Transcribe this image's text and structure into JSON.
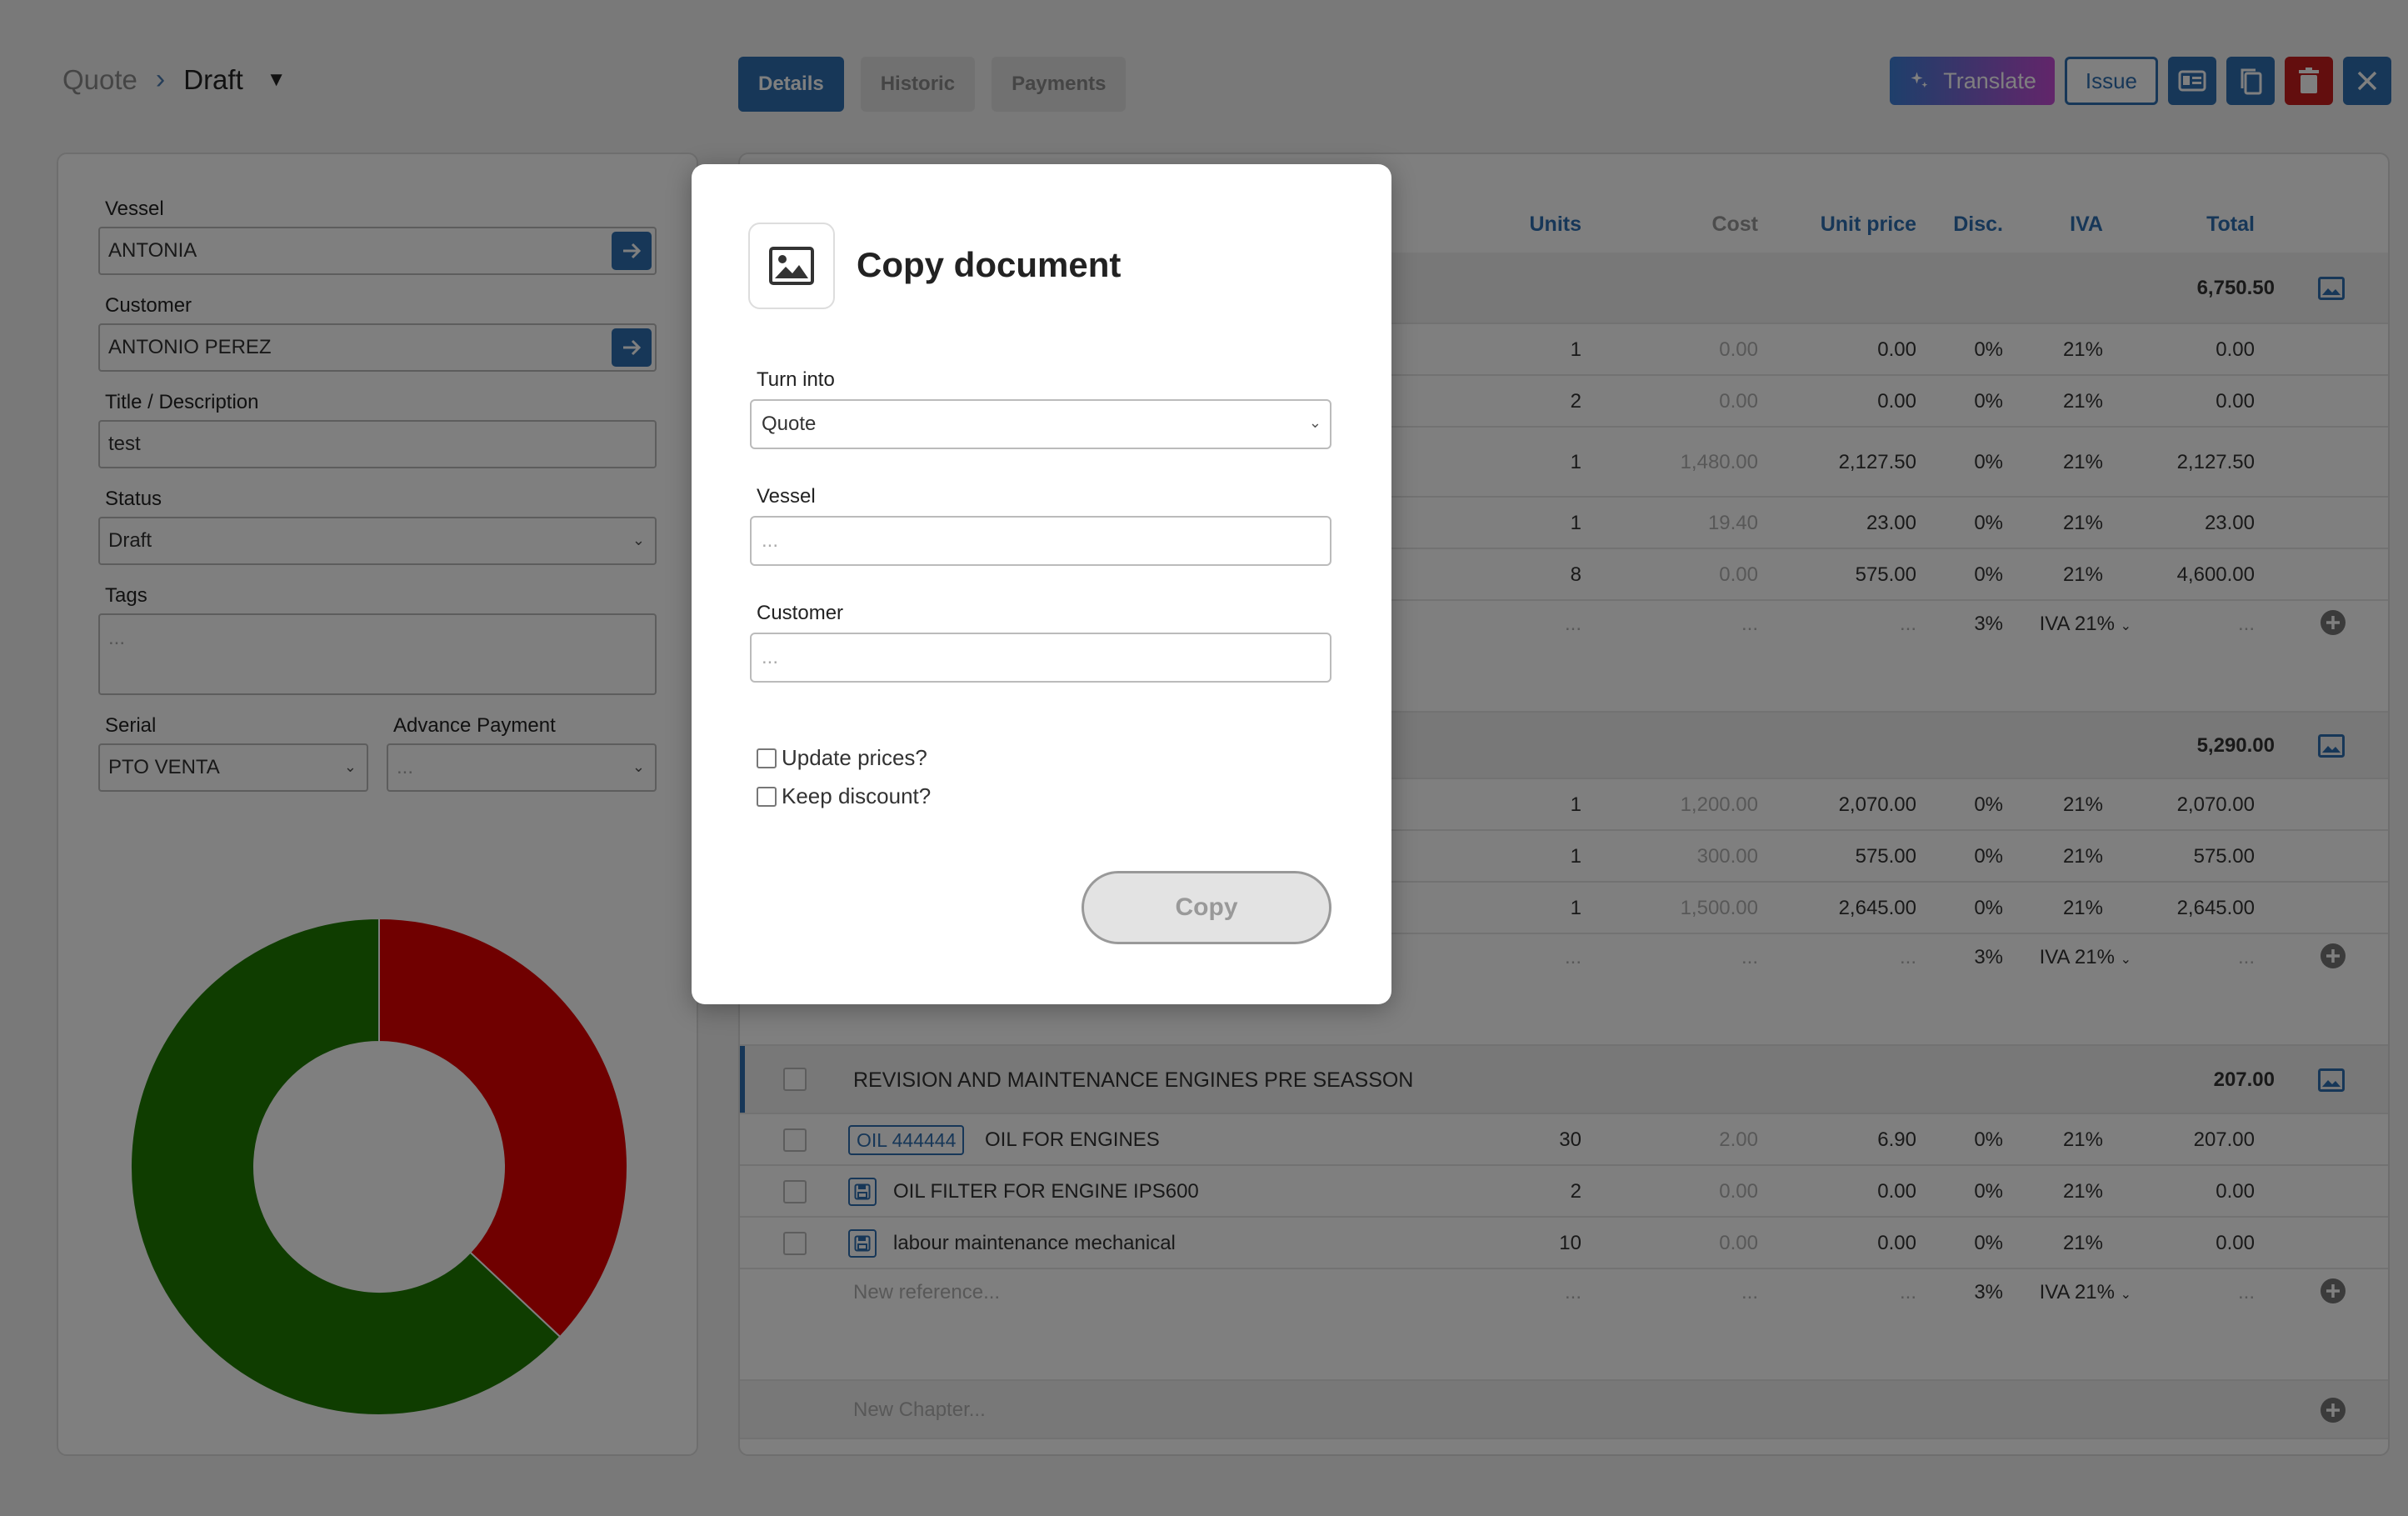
{
  "breadcrumb": {
    "root": "Quote",
    "current": "Draft"
  },
  "tabs": [
    {
      "label": "Details",
      "active": true
    },
    {
      "label": "Historic",
      "active": false
    },
    {
      "label": "Payments",
      "active": false
    }
  ],
  "actions": {
    "translate_label": "Translate",
    "issue_label": "Issue"
  },
  "left": {
    "vessel_label": "Vessel",
    "vessel_value": "ANTONIA",
    "customer_label": "Customer",
    "customer_value": "ANTONIO PEREZ",
    "title_label": "Title / Description",
    "title_value": "test",
    "status_label": "Status",
    "status_value": "Draft",
    "tags_label": "Tags",
    "tags_placeholder": "...",
    "serial_label": "Serial",
    "serial_value": "PTO VENTA",
    "advance_label": "Advance Payment",
    "advance_placeholder": "...",
    "donut": {
      "segments": [
        {
          "value": 37,
          "color": "#e10000"
        },
        {
          "value": 63,
          "color": "#1f7a00"
        }
      ]
    }
  },
  "table": {
    "headers": {
      "units": "Units",
      "cost": "Cost",
      "unit_price": "Unit price",
      "disc": "Disc.",
      "iva": "IVA",
      "total": "Total"
    },
    "chapter1": {
      "total": "6,750.50",
      "rows": [
        {
          "units": "1",
          "cost": "0.00",
          "price": "0.00",
          "disc": "0%",
          "iva": "21%",
          "total": "0.00"
        },
        {
          "units": "2",
          "cost": "0.00",
          "price": "0.00",
          "disc": "0%",
          "iva": "21%",
          "total": "0.00"
        },
        {
          "units": "1",
          "cost": "1,480.00",
          "price": "2,127.50",
          "disc": "0%",
          "iva": "21%",
          "total": "2,127.50"
        },
        {
          "units": "1",
          "cost": "19.40",
          "price": "23.00",
          "disc": "0%",
          "iva": "21%",
          "total": "23.00"
        },
        {
          "units": "8",
          "cost": "0.00",
          "price": "575.00",
          "disc": "0%",
          "iva": "21%",
          "total": "4,600.00"
        }
      ],
      "new_row": {
        "dots": "...",
        "disc": "3%",
        "iva": "IVA 21%"
      }
    },
    "chapter2": {
      "total": "5,290.00",
      "rows": [
        {
          "units": "1",
          "cost": "1,200.00",
          "price": "2,070.00",
          "disc": "0%",
          "iva": "21%",
          "total": "2,070.00"
        },
        {
          "units": "1",
          "cost": "300.00",
          "price": "575.00",
          "disc": "0%",
          "iva": "21%",
          "total": "575.00"
        },
        {
          "units": "1",
          "cost": "1,500.00",
          "price": "2,645.00",
          "disc": "0%",
          "iva": "21%",
          "total": "2,645.00"
        }
      ],
      "new_row": {
        "dots": "...",
        "disc": "3%",
        "iva": "IVA 21%"
      }
    },
    "chapter3": {
      "title": "REVISION AND MAINTENANCE ENGINES PRE SEASSON",
      "total": "207.00",
      "rows": [
        {
          "ref": "OIL 444444",
          "desc": "OIL FOR ENGINES",
          "units": "30",
          "cost": "2.00",
          "price": "6.90",
          "disc": "0%",
          "iva": "21%",
          "total": "207.00"
        },
        {
          "desc": "OIL FILTER FOR ENGINE IPS600",
          "units": "2",
          "cost": "0.00",
          "price": "0.00",
          "disc": "0%",
          "iva": "21%",
          "total": "0.00"
        },
        {
          "desc": "labour maintenance mechanical",
          "units": "10",
          "cost": "0.00",
          "price": "0.00",
          "disc": "0%",
          "iva": "21%",
          "total": "0.00"
        }
      ],
      "new_row": {
        "placeholder": "New reference...",
        "dots": "...",
        "disc": "3%",
        "iva": "IVA 21%"
      }
    },
    "new_chapter_placeholder": "New Chapter..."
  },
  "modal": {
    "title": "Copy document",
    "turn_into_label": "Turn into",
    "turn_into_value": "Quote",
    "vessel_label": "Vessel",
    "vessel_placeholder": "...",
    "customer_label": "Customer",
    "customer_placeholder": "...",
    "update_prices_label": "Update prices?",
    "keep_discount_label": "Keep discount?",
    "copy_label": "Copy"
  }
}
